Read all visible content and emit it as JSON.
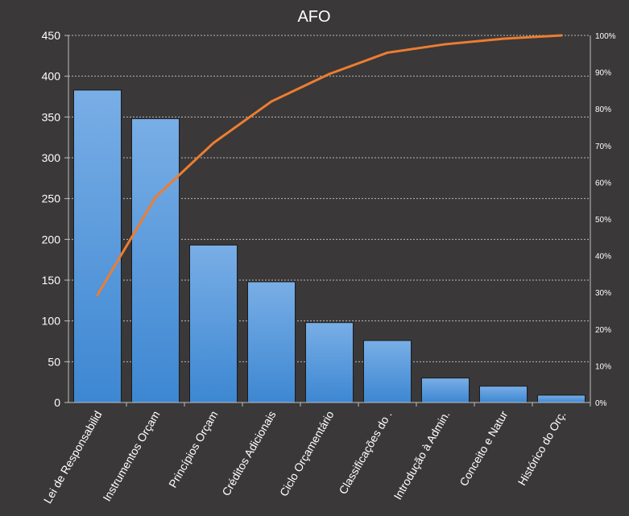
{
  "chart_data": {
    "type": "bar",
    "title": "AFO",
    "categories": [
      "Lei de Responsabilid",
      "Instrumentos Orçam",
      "Princípios Orçam",
      "Créditos Adicionais",
      "Ciclo Orçamentário",
      "Classificações do .",
      "Introdução à Admin.",
      "Conceito e Natur",
      "Histórico do Orç."
    ],
    "series": [
      {
        "type": "bar",
        "axis": "left",
        "values": [
          383,
          348,
          193,
          148,
          98,
          76,
          30,
          20,
          9
        ]
      },
      {
        "type": "line",
        "axis": "right",
        "values": [
          0.293,
          0.559,
          0.707,
          0.82,
          0.895,
          0.953,
          0.976,
          0.991,
          1.0
        ]
      }
    ],
    "ylim": [
      0,
      450
    ],
    "yticks": [
      "0",
      "50",
      "100",
      "150",
      "200",
      "250",
      "300",
      "350",
      "400",
      "450"
    ],
    "y2lim": [
      0,
      1
    ],
    "y2ticks": [
      "0%",
      "10%",
      "20%",
      "30%",
      "40%",
      "50%",
      "60%",
      "70%",
      "80%",
      "90%",
      "100%"
    ],
    "xlabel": "",
    "ylabel": "",
    "grid": true,
    "legend": "none",
    "colors": {
      "background": "#3a3838",
      "bar_top": "#79aee6",
      "bar_bottom": "#3d87d2",
      "line": "#ed7d31",
      "text": "#ffffff",
      "grid": "#d0d0d0"
    }
  }
}
